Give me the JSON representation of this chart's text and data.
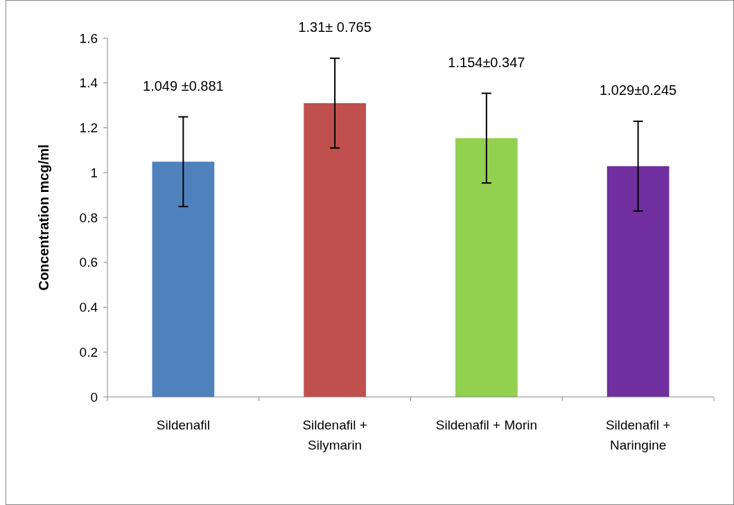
{
  "chart_data": {
    "type": "bar",
    "ylabel": "Concentration mcg/ml",
    "categories": [
      "Sildenafil",
      "Sildenafil + Silymarin",
      "Sildenafil + Morin",
      "Sildenafil + Naringine"
    ],
    "values": [
      1.049,
      1.31,
      1.154,
      1.029
    ],
    "colors": [
      "#4f81bd",
      "#c0504d",
      "#92d050",
      "#7030a0"
    ],
    "errors": [
      0.2,
      0.2,
      0.2,
      0.2
    ],
    "annotations": [
      "1.049 ±0.881",
      "1.31± 0.765",
      "1.154±0.347",
      "1.029±0.245"
    ],
    "ylim": [
      0,
      1.6
    ],
    "yticks": [
      0,
      0.2,
      0.4,
      0.6,
      0.8,
      1,
      1.2,
      1.4,
      1.6
    ],
    "grid": false
  }
}
